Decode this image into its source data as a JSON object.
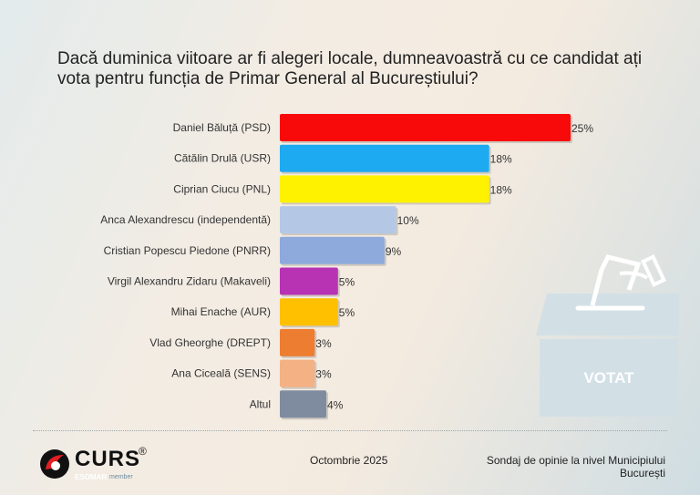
{
  "chart_data": {
    "type": "bar",
    "orientation": "horizontal",
    "title": "Dacă duminica viitoare ar fi alegeri locale, dumneavoastră cu ce candidat ați vota pentru funcția de Primar General al Bucureștiului?",
    "categories": [
      "Daniel Băluță (PSD)",
      "Cătălin Drulă (USR)",
      "Ciprian Ciucu (PNL)",
      "Anca Alexandrescu (independentă)",
      "Cristian Popescu Piedone (PNRR)",
      "Virgil Alexandru Zidaru (Makaveli)",
      "Mihai Enache (AUR)",
      "Vlad Gheorghe (DREPT)",
      "Ana Ciceală (SENS)",
      "Altul"
    ],
    "values": [
      25,
      18,
      18,
      10,
      9,
      5,
      5,
      3,
      3,
      4
    ],
    "data_labels": [
      "25%",
      "18%",
      "18%",
      "10%",
      "9%",
      "5%",
      "5%",
      "3%",
      "3%",
      "4%"
    ],
    "colors": [
      "#f80a0a",
      "#1eaaf0",
      "#fff200",
      "#b4c8e6",
      "#8eaadc",
      "#b832b4",
      "#ffc000",
      "#ed7d31",
      "#f4b183",
      "#7f8ca0"
    ],
    "unit": "%",
    "grid": false,
    "legend": "none"
  },
  "decor": {
    "ballot_box_label": "VOTAT",
    "ballot_box_icon": "ballot-box-icon"
  },
  "footer": {
    "logo_text": "CURS",
    "logo_reg": "®",
    "esomar": "ESOMAR",
    "member": "member",
    "date": "Octombrie 2025",
    "survey_line1": "Sondaj de opinie la nivel Municipiului",
    "survey_line2": "București"
  }
}
